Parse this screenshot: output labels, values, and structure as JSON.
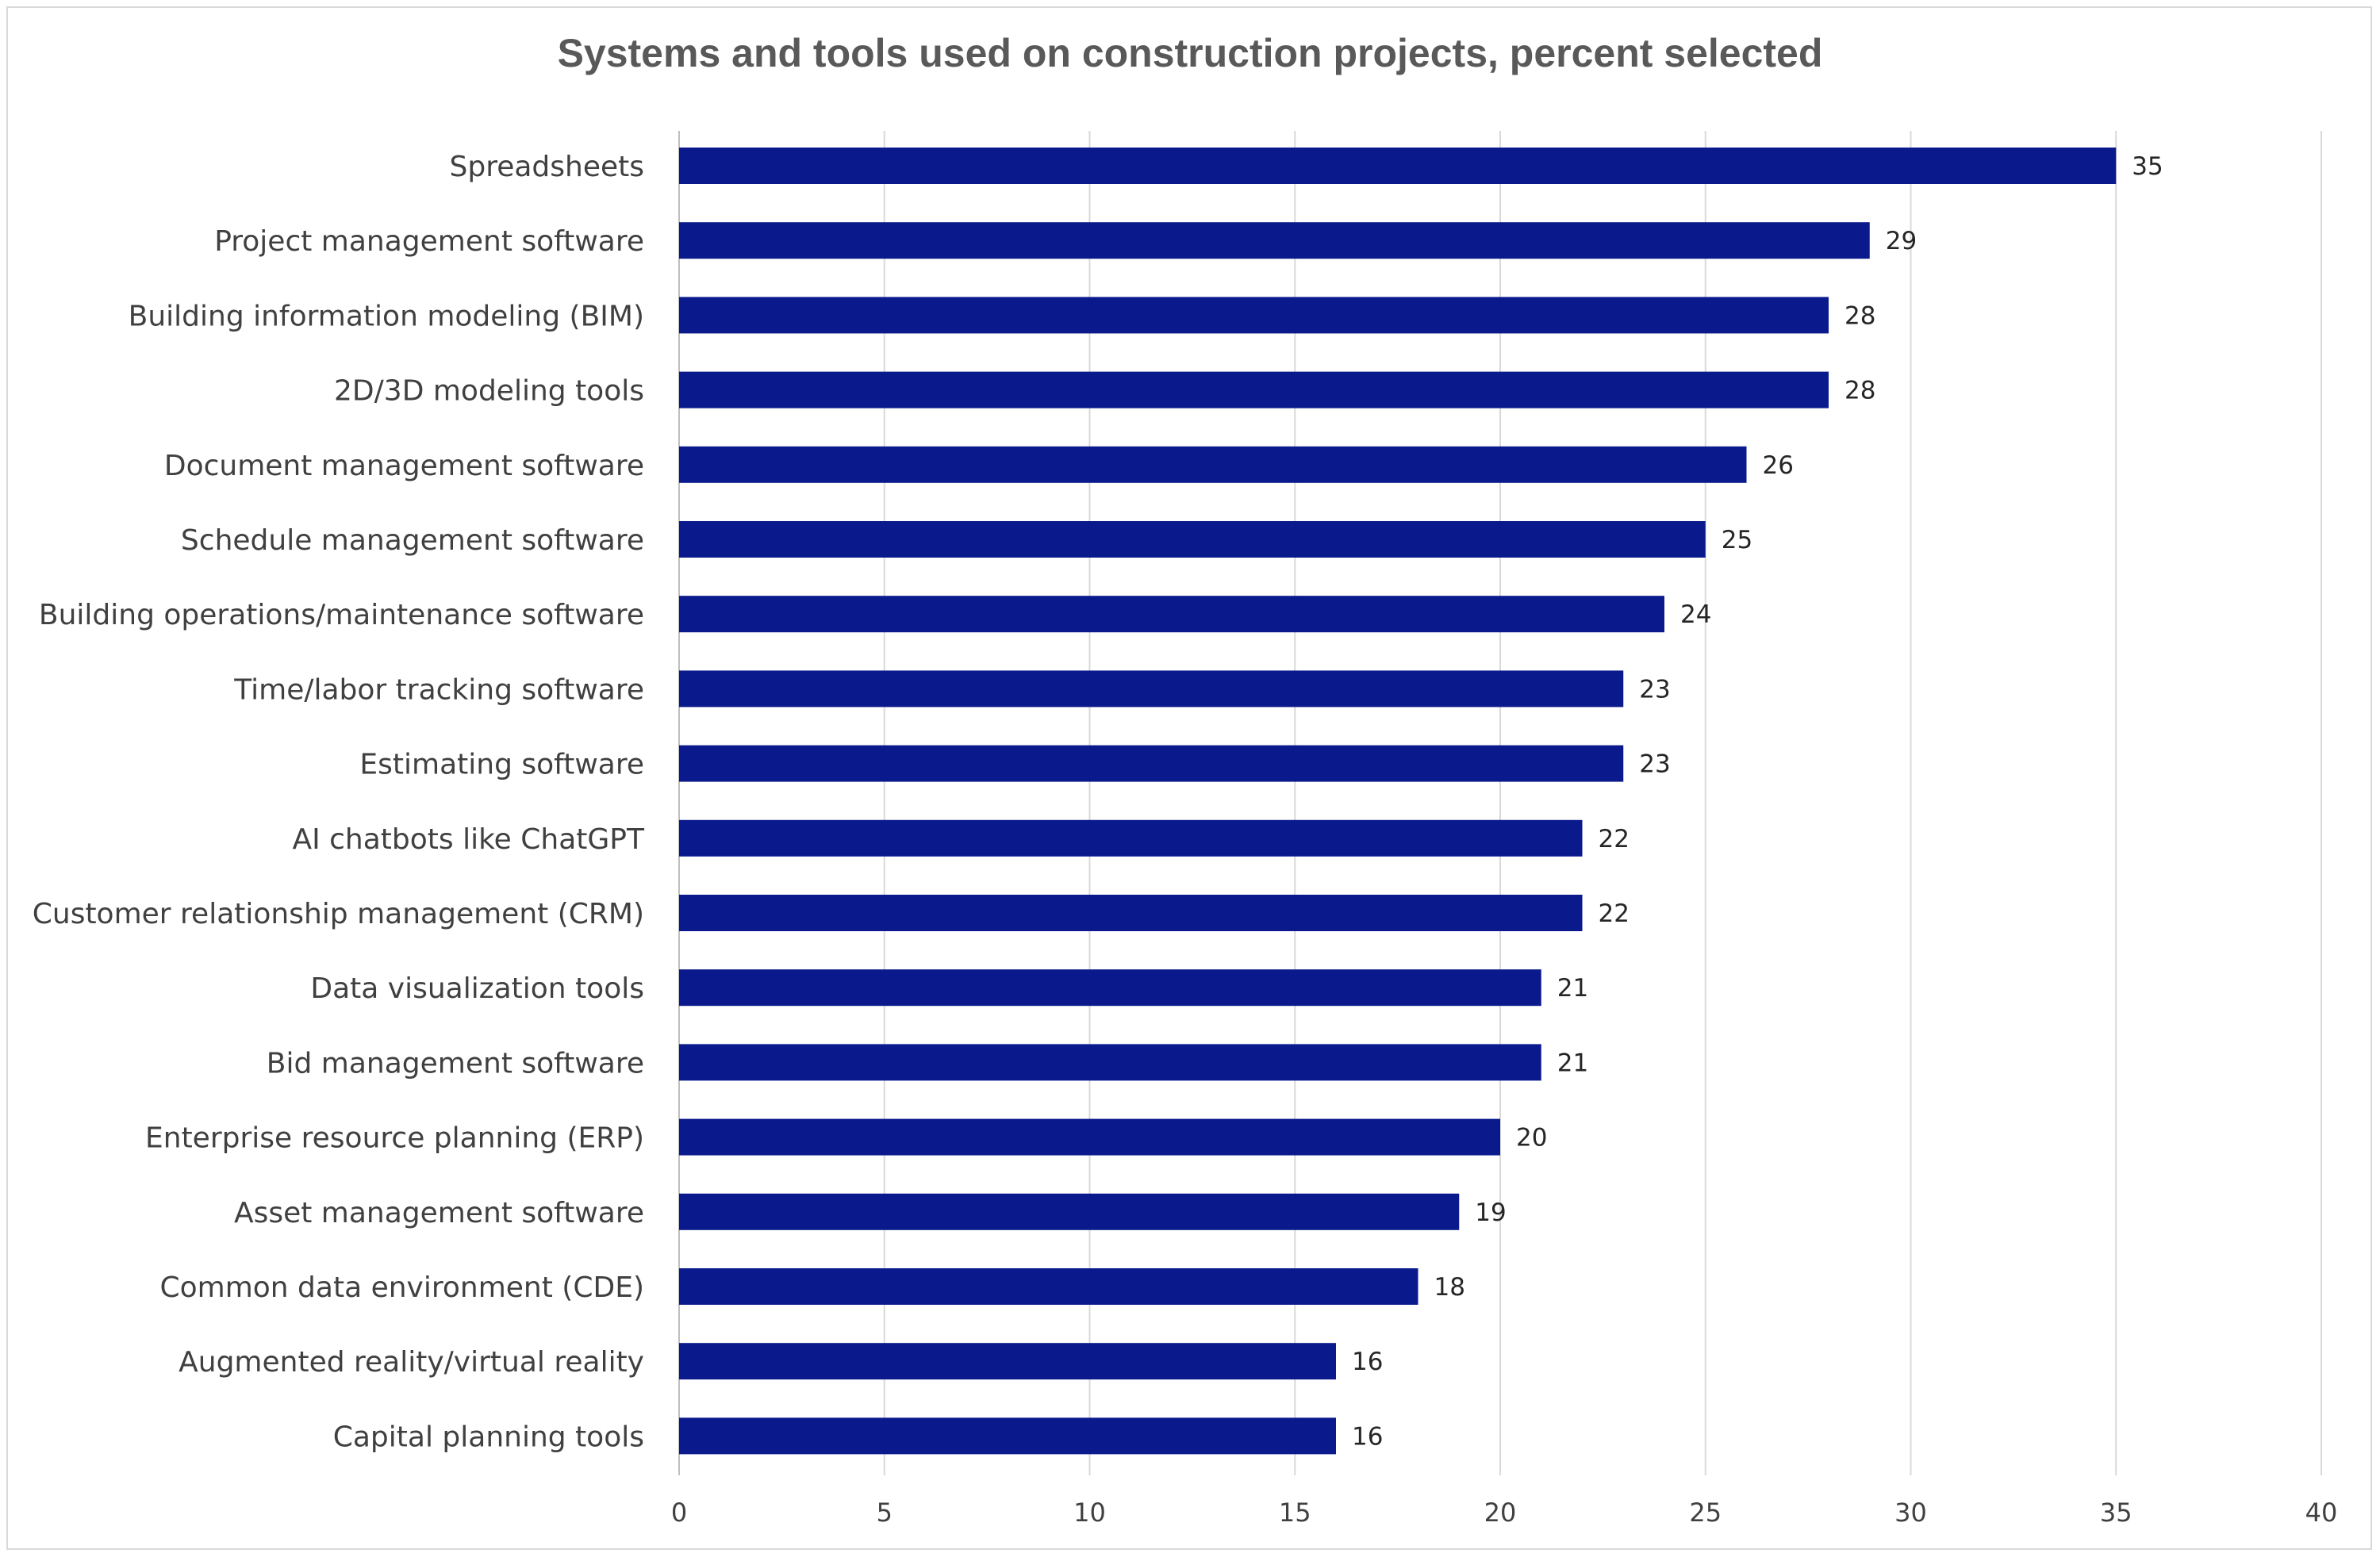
{
  "chart_data": {
    "type": "bar",
    "orientation": "horizontal",
    "title": "Systems and tools used on construction projects, percent selected",
    "categories": [
      "Spreadsheets",
      "Project management software",
      "Building information modeling (BIM)",
      "2D/3D modeling tools",
      "Document management software",
      "Schedule management software",
      "Building operations/maintenance software",
      "Time/labor tracking software",
      "Estimating software",
      "AI chatbots like ChatGPT",
      "Customer relationship management (CRM)",
      "Data visualization tools",
      "Bid management software",
      "Enterprise resource planning (ERP)",
      "Asset management software",
      "Common data environment (CDE)",
      "Augmented reality/virtual reality",
      "Capital planning tools"
    ],
    "values": [
      35,
      29,
      28,
      28,
      26,
      25,
      24,
      23,
      23,
      22,
      22,
      21,
      21,
      20,
      19,
      18,
      16,
      16
    ],
    "xlim": [
      0,
      40
    ],
    "xticks": [
      0,
      5,
      10,
      15,
      20,
      25,
      30,
      35,
      40
    ],
    "grid": "vertical",
    "legend": "none",
    "data_labels": true,
    "bar_color": "#0a1a8c",
    "grid_color": "#d9d9d9"
  }
}
